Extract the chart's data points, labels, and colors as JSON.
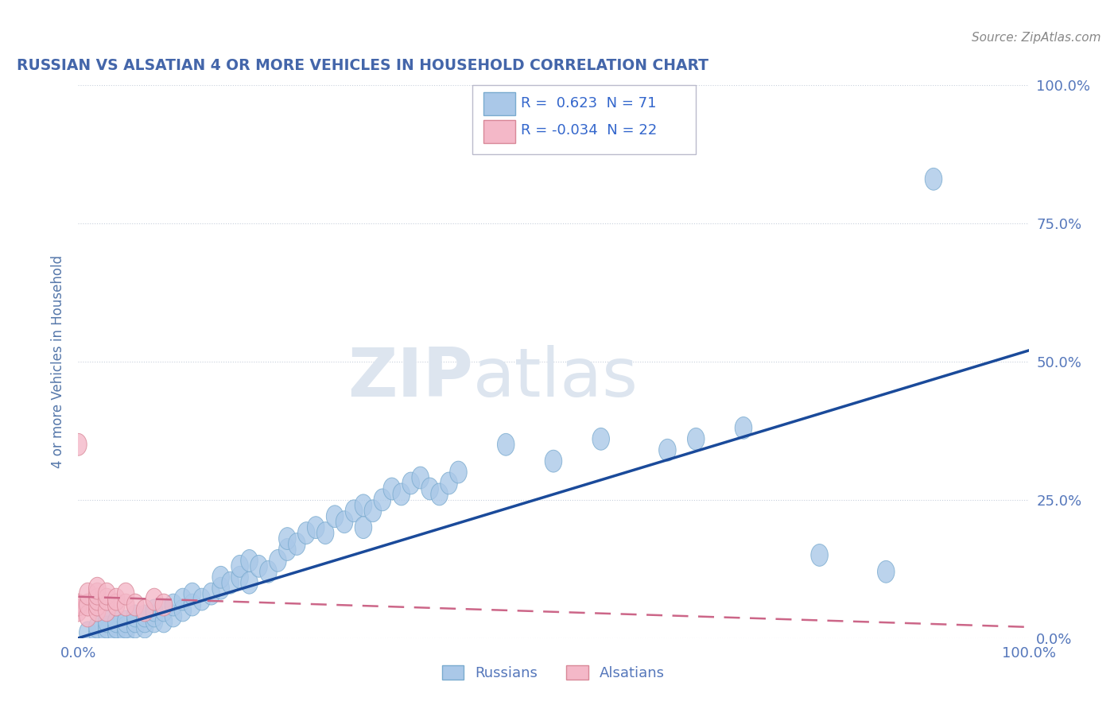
{
  "title": "RUSSIAN VS ALSATIAN 4 OR MORE VEHICLES IN HOUSEHOLD CORRELATION CHART",
  "source_text": "Source: ZipAtlas.com",
  "ylabel": "4 or more Vehicles in Household",
  "xlim": [
    0.0,
    1.0
  ],
  "ylim": [
    0.0,
    1.0
  ],
  "title_color": "#4466aa",
  "source_color": "#888888",
  "axis_label_color": "#5577aa",
  "tick_label_color": "#5577bb",
  "background_color": "#ffffff",
  "plot_bg_color": "#ffffff",
  "grid_color": "#c8d0dc",
  "watermark_zip": "ZIP",
  "watermark_atlas": "atlas",
  "watermark_color": "#dde5ef",
  "R_russian": 0.623,
  "N_russian": 71,
  "R_alsatian": -0.034,
  "N_alsatian": 22,
  "legend_R_color": "#3366cc",
  "russian_color": "#aac8e8",
  "russian_edge_color": "#7aabcf",
  "alsatian_color": "#f4b8c8",
  "alsatian_edge_color": "#d88898",
  "russian_line_color": "#1a4a9a",
  "alsatian_line_color": "#cc6688",
  "russians_x": [
    0.01,
    0.02,
    0.02,
    0.03,
    0.03,
    0.03,
    0.04,
    0.04,
    0.04,
    0.05,
    0.05,
    0.05,
    0.06,
    0.06,
    0.06,
    0.07,
    0.07,
    0.07,
    0.08,
    0.08,
    0.08,
    0.09,
    0.09,
    0.1,
    0.1,
    0.11,
    0.11,
    0.12,
    0.12,
    0.13,
    0.14,
    0.15,
    0.15,
    0.16,
    0.17,
    0.17,
    0.18,
    0.18,
    0.19,
    0.2,
    0.21,
    0.22,
    0.22,
    0.23,
    0.24,
    0.25,
    0.26,
    0.27,
    0.28,
    0.29,
    0.3,
    0.3,
    0.31,
    0.32,
    0.33,
    0.34,
    0.35,
    0.36,
    0.37,
    0.38,
    0.39,
    0.4,
    0.45,
    0.5,
    0.55,
    0.62,
    0.65,
    0.7,
    0.78,
    0.85,
    0.9
  ],
  "russians_y": [
    0.01,
    0.01,
    0.02,
    0.01,
    0.02,
    0.03,
    0.01,
    0.02,
    0.03,
    0.01,
    0.02,
    0.03,
    0.02,
    0.03,
    0.04,
    0.02,
    0.03,
    0.04,
    0.03,
    0.04,
    0.05,
    0.03,
    0.05,
    0.04,
    0.06,
    0.05,
    0.07,
    0.06,
    0.08,
    0.07,
    0.08,
    0.09,
    0.11,
    0.1,
    0.11,
    0.13,
    0.1,
    0.14,
    0.13,
    0.12,
    0.14,
    0.16,
    0.18,
    0.17,
    0.19,
    0.2,
    0.19,
    0.22,
    0.21,
    0.23,
    0.2,
    0.24,
    0.23,
    0.25,
    0.27,
    0.26,
    0.28,
    0.29,
    0.27,
    0.26,
    0.28,
    0.3,
    0.35,
    0.32,
    0.36,
    0.34,
    0.36,
    0.38,
    0.15,
    0.12,
    0.83
  ],
  "alsatians_x": [
    0.0,
    0.0,
    0.01,
    0.01,
    0.01,
    0.02,
    0.02,
    0.02,
    0.02,
    0.02,
    0.03,
    0.03,
    0.03,
    0.04,
    0.04,
    0.05,
    0.05,
    0.06,
    0.07,
    0.08,
    0.09,
    0.0
  ],
  "alsatians_y": [
    0.05,
    0.06,
    0.04,
    0.06,
    0.08,
    0.05,
    0.06,
    0.07,
    0.08,
    0.09,
    0.05,
    0.07,
    0.08,
    0.06,
    0.07,
    0.06,
    0.08,
    0.06,
    0.05,
    0.07,
    0.06,
    0.35
  ],
  "russian_line_x": [
    0.0,
    1.0
  ],
  "russian_line_y": [
    0.0,
    0.52
  ],
  "alsatian_line_x": [
    0.0,
    1.0
  ],
  "alsatian_line_y": [
    0.075,
    0.02
  ]
}
